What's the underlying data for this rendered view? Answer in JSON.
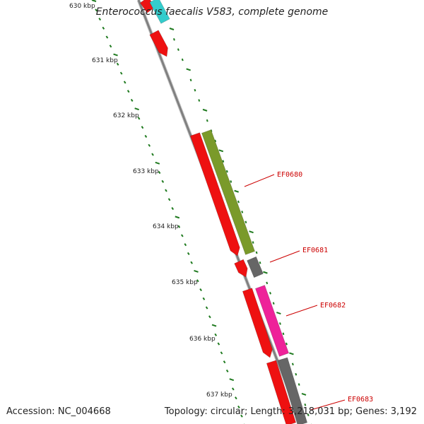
{
  "title": "Enterococcus faecalis V583, complete genome",
  "footer": {
    "accession": "Accession: NC_004668",
    "topology": "Topology: circular; Length: 3,218,031 bp; Genes: 3,192"
  },
  "ticks": [
    "630 kbp",
    "631 kbp",
    "632 kbp",
    "633 kbp",
    "634 kbp",
    "635 kbp",
    "636 kbp",
    "637 kbp"
  ],
  "gene_labels": [
    "EF0680",
    "EF0681",
    "EF0682",
    "EF0683"
  ],
  "colors": {
    "backbone": "#808080",
    "tick_track": "#1f7a1f",
    "label": "#cc0000",
    "red_gene": "#ee1111",
    "olive_gene": "#7a9a2a",
    "gray_gene": "#666666",
    "magenta_gene": "#ee2299",
    "cyan_gene": "#33cccc"
  }
}
